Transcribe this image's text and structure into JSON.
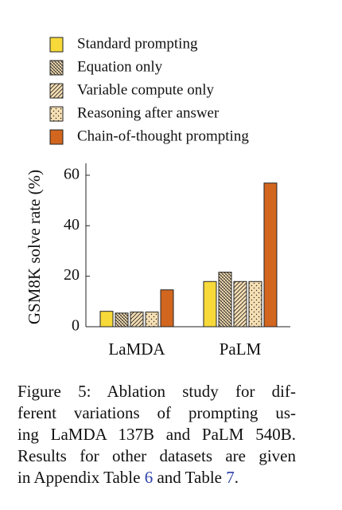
{
  "chart_data": {
    "type": "bar",
    "y_label": "GSM8K solve rate (%)",
    "categories": [
      "LaMDA",
      "PaLM"
    ],
    "series": [
      {
        "name": "Standard prompting",
        "color": "#f7d93a",
        "pattern": "solid",
        "values": [
          6.1,
          17.9
        ]
      },
      {
        "name": "Equation only",
        "color": "#f6dfb3",
        "pattern": "crosshatch",
        "values": [
          5.4,
          21.6
        ]
      },
      {
        "name": "Variable compute only",
        "color": "#f6dfb3",
        "pattern": "diagonal",
        "values": [
          5.8,
          17.9
        ]
      },
      {
        "name": "Reasoning after answer",
        "color": "#f6dfb3",
        "pattern": "dots",
        "values": [
          5.8,
          17.9
        ]
      },
      {
        "name": "Chain-of-thought prompting",
        "color": "#d2661f",
        "pattern": "solid",
        "values": [
          14.6,
          56.9
        ]
      }
    ],
    "ylim": [
      0,
      64.7
    ],
    "yticks": [
      0,
      20,
      40,
      60
    ],
    "grid": false
  },
  "caption": {
    "lines": [
      "Figure 5: Ablation study for dif-",
      "ferent variations of prompting us-",
      "ing LaMDA 137B and PaLM 540B.",
      "Results for other datasets are given"
    ],
    "last_line": [
      "in Appendix Table ",
      "6",
      " and Table ",
      "7",
      "."
    ]
  }
}
